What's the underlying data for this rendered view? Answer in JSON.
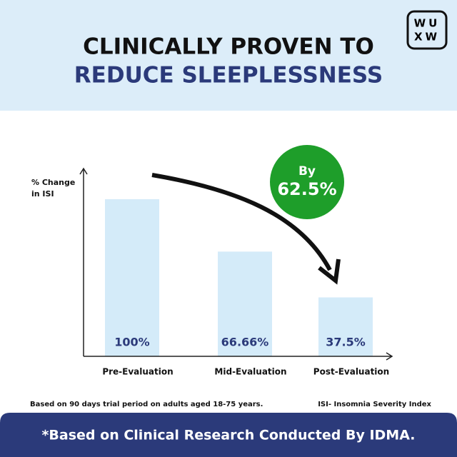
{
  "logo": [
    "WU",
    "XW"
  ],
  "chart_data": {
    "type": "bar",
    "title": [
      "CLINICALLY PROVEN TO",
      "REDUCE SLEEPLESSNESS"
    ],
    "y_label": [
      "% Change",
      "in ISI"
    ],
    "categories": [
      "Pre-Evaluation",
      "Mid-Evaluation",
      "Post-Evaluation"
    ],
    "values": [
      100,
      66.66,
      37.5
    ],
    "value_labels": [
      "100%",
      "66.66%",
      "37.5%"
    ],
    "color": "#d4ebf9",
    "ylim": [
      0,
      120
    ],
    "badge": [
      "By",
      "62.5%"
    ],
    "notes": [
      "Based on 90 days trial period on adults aged 18-75 years.",
      "ISI- Insomnia Severity Index"
    ],
    "footer": "*Based on Clinical Research Conducted By IDMA."
  }
}
